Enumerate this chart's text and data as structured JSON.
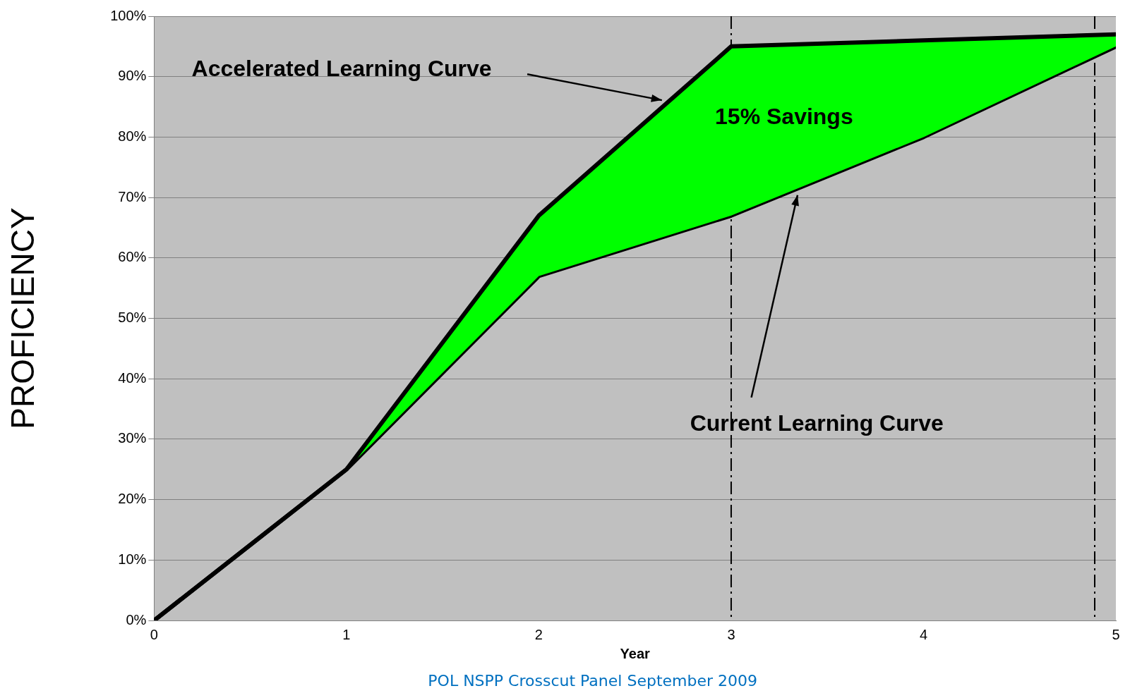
{
  "chart_data": {
    "type": "line",
    "xlabel": "Year",
    "ylabel": "PROFICIENCY",
    "x": [
      0,
      1,
      2,
      3,
      4,
      5
    ],
    "series": [
      {
        "type": "area",
        "color": "#00ff00",
        "values": [
          0,
          25,
          67,
          95,
          96,
          97
        ]
      },
      {
        "color": "#000000",
        "values": [
          0,
          25,
          57,
          67,
          80,
          95
        ]
      }
    ],
    "xlim": [
      0,
      5
    ],
    "xticks": [
      0,
      1,
      2,
      3,
      4,
      5
    ],
    "ylim": [
      0,
      100
    ],
    "yticks": [
      {
        "value": 0,
        "label": "0%"
      },
      {
        "value": 10,
        "label": "10%"
      },
      {
        "value": 20,
        "label": "20%"
      },
      {
        "value": 30,
        "label": "30%"
      },
      {
        "value": 40,
        "label": "40%"
      },
      {
        "value": 50,
        "label": "50%"
      },
      {
        "value": 60,
        "label": "60%"
      },
      {
        "value": 70,
        "label": "70%"
      },
      {
        "value": 80,
        "label": "80%"
      },
      {
        "value": 90,
        "label": "90%"
      },
      {
        "value": 100,
        "label": "100%"
      }
    ],
    "grid": "y",
    "legend": false,
    "marker": "none",
    "line_style": "solid",
    "ref_lines": [
      {
        "axis": "x",
        "value": 3,
        "color": "#000000",
        "line_style": "dashed"
      },
      {
        "axis": "x",
        "value": 4.89,
        "color": "#000000",
        "line_style": "dashed"
      }
    ],
    "annotations": [
      "Accelerated Learning Curve",
      "15% Savings",
      "Current Learning Curve",
      "POL NSPP Crosscut Panel September 2009"
    ]
  }
}
